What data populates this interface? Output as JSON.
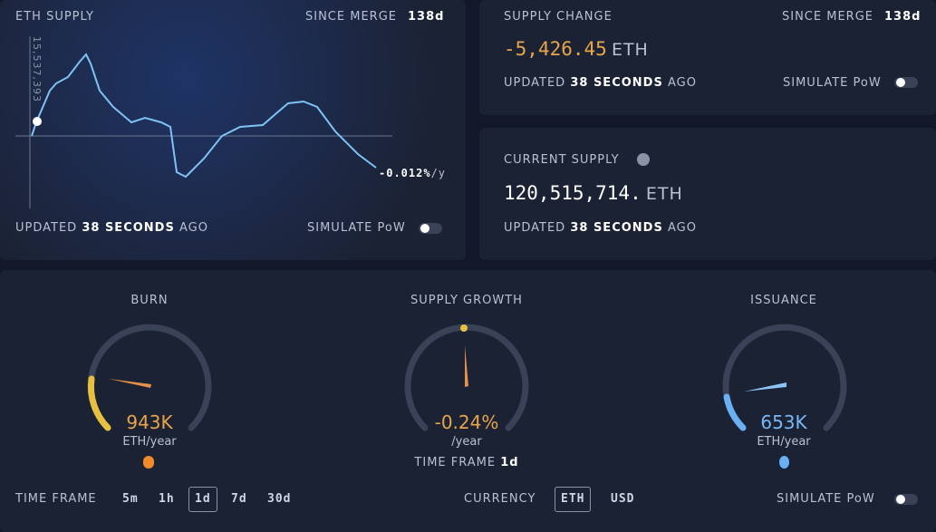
{
  "eth_supply": {
    "title": "ETH SUPPLY",
    "since_label": "SINCE MERGE",
    "since_value": "138d",
    "axis_label": "15,537,393",
    "rate": "-0.012%",
    "rate_unit": "/y",
    "updated": [
      "UPDATED",
      "38 SECONDS",
      "AGO"
    ],
    "simulate": "SIMULATE PoW"
  },
  "supply_change": {
    "title": "SUPPLY CHANGE",
    "since_label": "SINCE MERGE",
    "since_value": "138d",
    "value": "-5,426.45",
    "unit": "ETH",
    "updated": [
      "UPDATED",
      "38 SECONDS",
      "AGO"
    ],
    "simulate": "SIMULATE PoW"
  },
  "current_supply": {
    "title": "CURRENT SUPPLY",
    "value": "120,515,714.",
    "unit": "ETH",
    "updated": [
      "UPDATED",
      "38 SECONDS",
      "AGO"
    ]
  },
  "gauges": {
    "burn": {
      "title": "BURN",
      "value": "943K",
      "unit": "ETH/year"
    },
    "supply_growth": {
      "title": "SUPPLY GROWTH",
      "value": "-0.24%",
      "unit": "/year",
      "time_frame_label": "TIME FRAME",
      "time_frame": "1d"
    },
    "issuance": {
      "title": "ISSUANCE",
      "value": "653K",
      "unit": "ETH/year"
    }
  },
  "footer": {
    "time_frame_label": "TIME FRAME",
    "time_frames": [
      "5m",
      "1h",
      "1d",
      "7d",
      "30d"
    ],
    "selected_time_frame": 2,
    "currency_label": "CURRENCY",
    "currencies": [
      "ETH",
      "USD"
    ],
    "selected_currency": 0,
    "simulate": "SIMULATE PoW"
  }
}
